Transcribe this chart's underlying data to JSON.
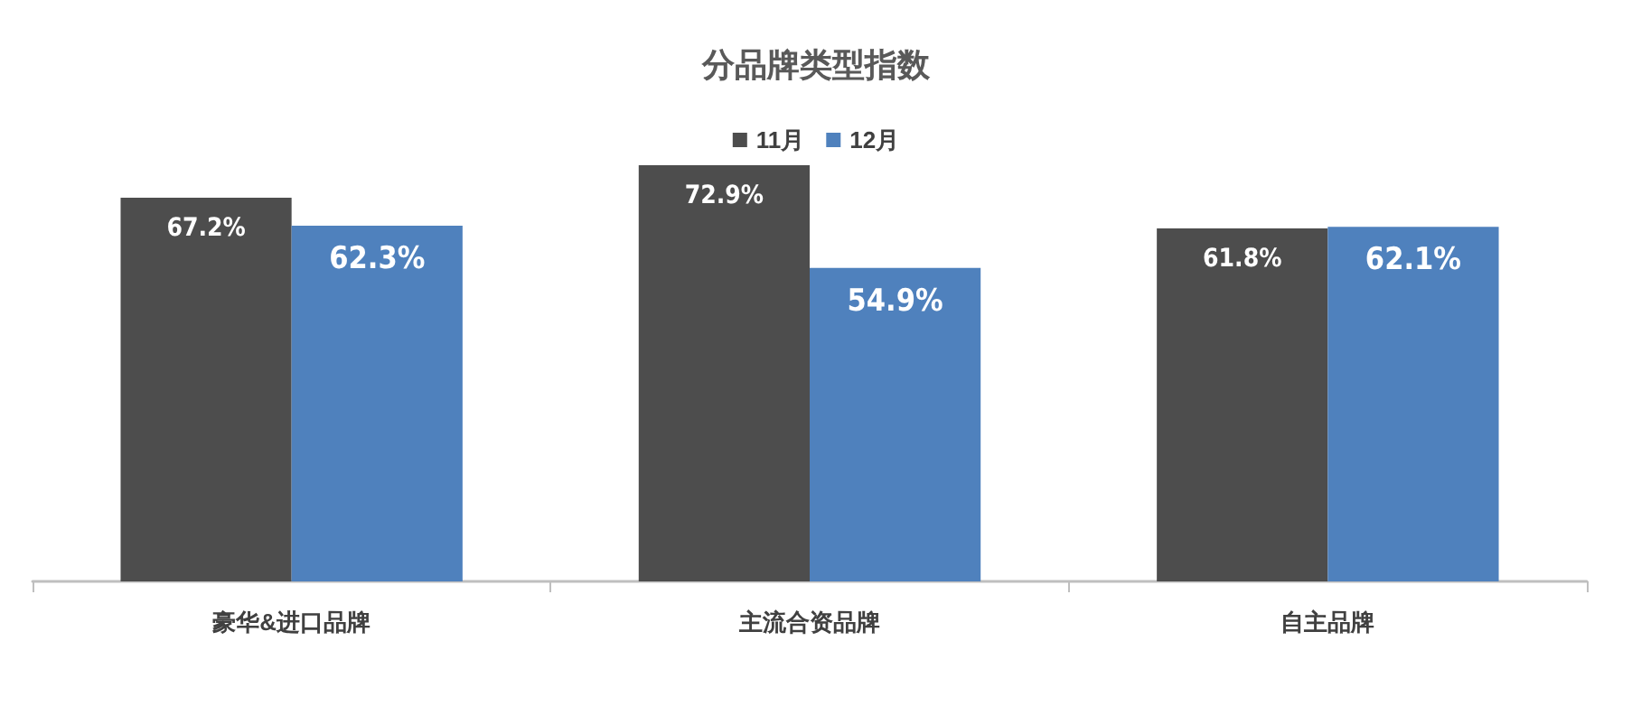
{
  "chart_data": {
    "type": "bar",
    "title": "分品牌类型指数",
    "categories": [
      "豪华&进口品牌",
      "主流合资品牌",
      "自主品牌"
    ],
    "series": [
      {
        "name": "11月",
        "color": "#4d4d4d",
        "values": [
          67.2,
          72.9,
          61.8
        ],
        "value_labels": [
          "67.2%",
          "72.9%",
          "61.8%"
        ]
      },
      {
        "name": "12月",
        "color": "#4f81bd",
        "values": [
          62.3,
          54.9,
          62.1
        ],
        "value_labels": [
          "62.3%",
          "54.9%",
          "62.1%"
        ]
      }
    ],
    "legend": "top",
    "tick_labels": "x"
  }
}
